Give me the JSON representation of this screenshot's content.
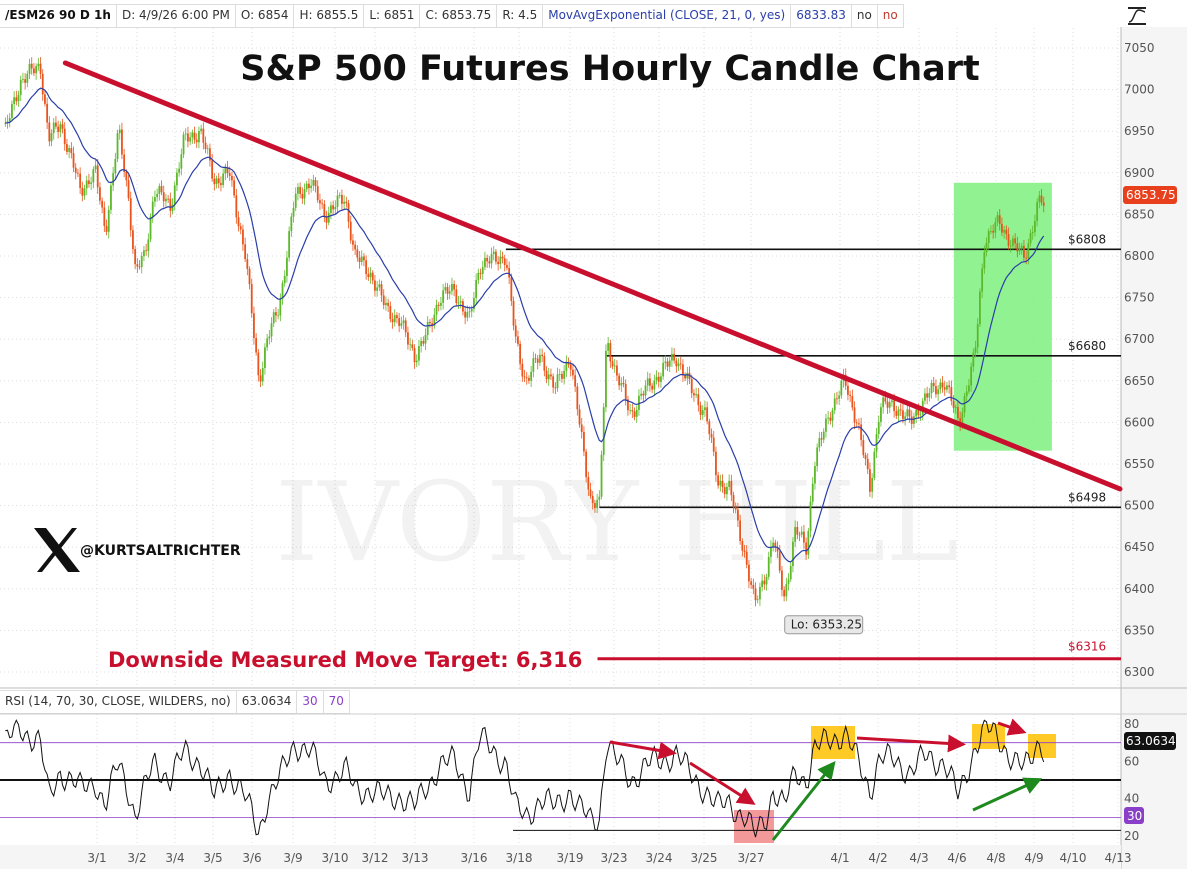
{
  "header": {
    "symbol": "/ESM26 90 D 1h",
    "date": "D: 4/9/26 6:00 PM",
    "open": "O: 6854",
    "high": "H: 6855.5",
    "low": "L: 6851",
    "close": "C: 6853.75",
    "range": "R: 4.5",
    "study": "MovAvgExponential (CLOSE, 21, 0, yes)",
    "study_value": "6833.83",
    "flag1": "no",
    "flag2": "no"
  },
  "rsi_header": {
    "study": "RSI (14, 70, 30, CLOSE, WILDERS, no)",
    "value": "63.0634",
    "oversold": "30",
    "overbought": "70"
  },
  "annotations": {
    "title": "S&P 500 Futures Hourly Candle Chart",
    "target_text": "Downside Measured Move Target: 6,316",
    "handle": "@KURTSALTRICHTER",
    "watermark": "IVORY HILL",
    "low_label": "Lo: 6353.25",
    "last_price_tag": "6853.75",
    "rsi_value_tag": "63.0634",
    "rsi_30_tag": "30"
  },
  "colors": {
    "up": "#5cb82a",
    "down": "#e8541c",
    "ema": "#2a3ea8",
    "trendline": "#c8102e",
    "highlight_box": "#7ef07e",
    "rsi_box": "#ffc000",
    "rsi_low_box": "#f08080",
    "arrow_red": "#c8102e",
    "arrow_green": "#1e8a1e",
    "rsi_bands": "#8a3fc8"
  },
  "chart_data": [
    {
      "type": "candlestick",
      "title": "S&P 500 Futures Hourly Candle Chart",
      "ylim": [
        6275,
        7075
      ],
      "y_ticks": [
        7050,
        7000,
        6950,
        6900,
        6850,
        6800,
        6750,
        6700,
        6650,
        6600,
        6550,
        6500,
        6450,
        6400,
        6350,
        6300
      ],
      "x_ticks": [
        "3/1",
        "3/2",
        "3/4",
        "3/5",
        "3/6",
        "3/9",
        "3/10",
        "3/12",
        "3/13",
        "3/16",
        "3/18",
        "3/19",
        "3/23",
        "3/24",
        "3/25",
        "3/27",
        "4/1",
        "4/2",
        "4/3",
        "4/6",
        "4/8",
        "4/9",
        "4/10",
        "4/13"
      ],
      "grid": true,
      "ema_period": 21,
      "points_time_price_rsi": [
        [
          "2/25 17:00",
          6950,
          70
        ],
        [
          "2/26 02:00",
          7010,
          78
        ],
        [
          "2/26 14:00",
          7030,
          70
        ],
        [
          "2/26 19:00",
          6940,
          40
        ],
        [
          "2/27 02:00",
          6960,
          55
        ],
        [
          "2/27 14:00",
          6880,
          45
        ],
        [
          "2/27 23:00",
          6900,
          50
        ],
        [
          "3/1 05:00",
          6830,
          35
        ],
        [
          "3/1 13:00",
          6950,
          60
        ],
        [
          "3/1 19:00",
          6870,
          45
        ],
        [
          "3/1 23:00",
          6780,
          30
        ],
        [
          "3/2 05:00",
          6800,
          45
        ],
        [
          "3/2 11:00",
          6880,
          60
        ],
        [
          "3/2 21:00",
          6860,
          50
        ],
        [
          "3/4 06:00",
          6940,
          65
        ],
        [
          "3/4 16:00",
          6950,
          60
        ],
        [
          "3/5 01:00",
          6890,
          40
        ],
        [
          "3/5 10:00",
          6900,
          55
        ],
        [
          "3/5 20:00",
          6800,
          40
        ],
        [
          "3/6 04:00",
          6650,
          22
        ],
        [
          "3/6 09:00",
          6700,
          40
        ],
        [
          "3/6 16:00",
          6740,
          50
        ],
        [
          "3/9 01:00",
          6870,
          70
        ],
        [
          "3/9 10:00",
          6890,
          65
        ],
        [
          "3/9 18:00",
          6850,
          50
        ],
        [
          "3/10 06:00",
          6870,
          55
        ],
        [
          "3/10 12:00",
          6800,
          45
        ],
        [
          "3/10 21:00",
          6780,
          45
        ],
        [
          "3/12 06:00",
          6740,
          40
        ],
        [
          "3/12 15:00",
          6720,
          42
        ],
        [
          "3/13 00:00",
          6680,
          35
        ],
        [
          "3/13 04:00",
          6700,
          45
        ],
        [
          "3/13 10:00",
          6750,
          58
        ],
        [
          "3/13 16:00",
          6760,
          60
        ],
        [
          "3/13 22:00",
          6720,
          45
        ],
        [
          "3/16 03:00",
          6790,
          72
        ],
        [
          "3/16 17:00",
          6800,
          60
        ],
        [
          "3/16 22:00",
          6700,
          35
        ],
        [
          "3/18 03:00",
          6650,
          30
        ],
        [
          "3/18 10:00",
          6680,
          40
        ],
        [
          "3/18 17:00",
          6640,
          35
        ],
        [
          "3/19 00:00",
          6680,
          45
        ],
        [
          "3/19 05:00",
          6600,
          35
        ],
        [
          "3/19 11:00",
          6510,
          28
        ],
        [
          "3/19 16:00",
          6500,
          30
        ],
        [
          "3/19 20:00",
          6700,
          72
        ],
        [
          "3/23 01:00",
          6660,
          60
        ],
        [
          "3/23 09:00",
          6610,
          50
        ],
        [
          "3/23 17:00",
          6640,
          58
        ],
        [
          "3/24 01:00",
          6660,
          60
        ],
        [
          "3/24 09:00",
          6680,
          65
        ],
        [
          "3/24 17:00",
          6640,
          52
        ],
        [
          "3/25 01:00",
          6610,
          45
        ],
        [
          "3/25 07:00",
          6530,
          35
        ],
        [
          "3/25 13:00",
          6520,
          38
        ],
        [
          "3/25 21:00",
          6440,
          30
        ],
        [
          "3/27 01:00",
          6380,
          20
        ],
        [
          "3/27 04:00",
          6420,
          30
        ],
        [
          "3/27 06:00",
          6460,
          45
        ],
        [
          "3/27 09:00",
          6390,
          35
        ],
        [
          "3/27 12:00",
          6470,
          55
        ],
        [
          "3/27 15:00",
          6450,
          50
        ],
        [
          "3/27 17:00",
          6550,
          65
        ],
        [
          "3/27 21:00",
          6610,
          72
        ],
        [
          "4/1 03:00",
          6650,
          75
        ],
        [
          "4/1 11:00",
          6600,
          60
        ],
        [
          "4/1 19:00",
          6520,
          45
        ],
        [
          "4/2 01:00",
          6620,
          62
        ],
        [
          "4/2 10:00",
          6620,
          60
        ],
        [
          "4/2 19:00",
          6600,
          55
        ],
        [
          "4/3 04:00",
          6630,
          62
        ],
        [
          "4/3 16:00",
          6650,
          60
        ],
        [
          "4/6 01:00",
          6600,
          40
        ],
        [
          "4/6 11:00",
          6680,
          68
        ],
        [
          "4/6 17:00",
          6820,
          78
        ],
        [
          "4/8 02:00",
          6840,
          72
        ],
        [
          "4/8 12:00",
          6810,
          60
        ],
        [
          "4/8 18:00",
          6800,
          55
        ],
        [
          "4/9 04:00",
          6870,
          73
        ],
        [
          "4/9 07:00",
          6853.75,
          63.0634
        ]
      ],
      "trendline": [
        [
          "2/26 14:00",
          7032
        ],
        [
          "4/13 00:00",
          6520
        ]
      ],
      "levels": [
        {
          "label": "$6808",
          "value": 6808,
          "from": "3/16 17:00"
        },
        {
          "label": "$6680",
          "value": 6680,
          "from": "3/19 20:00"
        },
        {
          "label": "$6498",
          "value": 6498,
          "from": "3/19 16:00"
        },
        {
          "label": "$6316",
          "value": 6316,
          "from": "3/19 15:00"
        }
      ],
      "highlight_box": {
        "from": "4/3 22:00",
        "to": "4/9 11:00",
        "low": 6566,
        "high": 6888
      },
      "low_point": {
        "time": "3/27 01:00",
        "value": 6353.25
      }
    },
    {
      "type": "line",
      "title": "RSI (14, 70, 30, CLOSE, WILDERS, no)",
      "ylim": [
        16,
        84
      ],
      "y_ticks": [
        80,
        60,
        40,
        20
      ],
      "bands": [
        30,
        50,
        70
      ],
      "support_level": 23
    }
  ]
}
